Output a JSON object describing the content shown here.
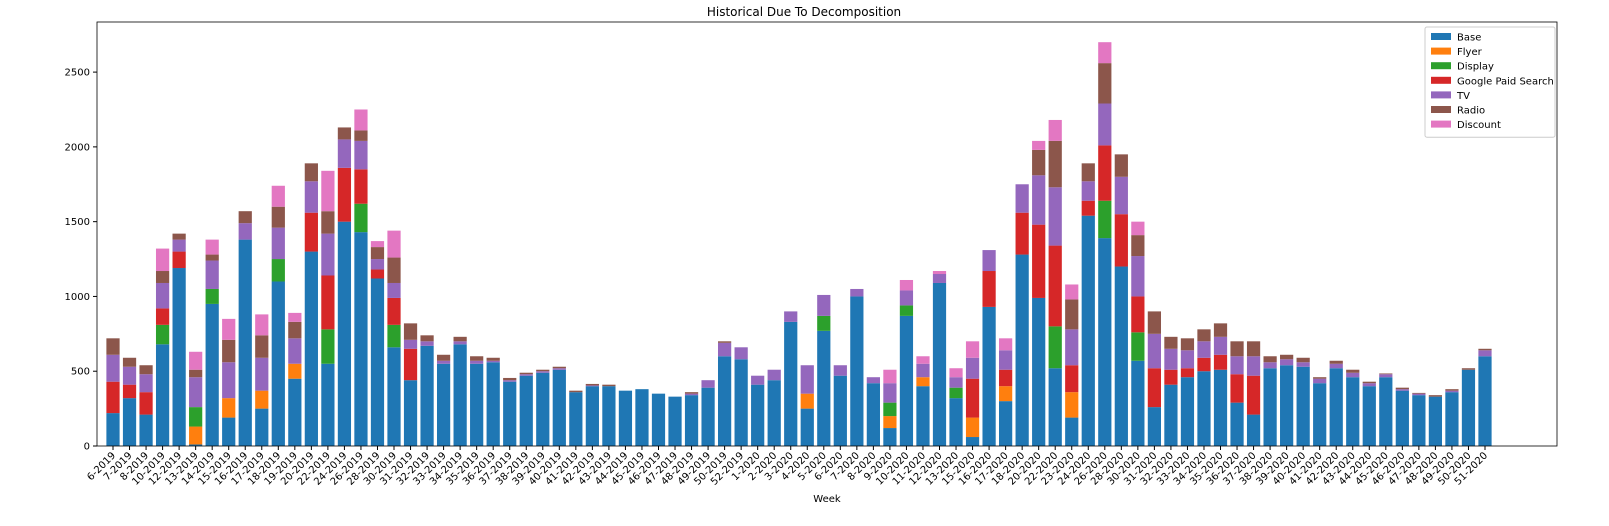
{
  "chart_data": {
    "type": "stacked-bar",
    "title": "Historical Due To Decomposition",
    "x_label": "Week",
    "categories": [
      "6-2019",
      "7-2019",
      "8-2019",
      "10-2019",
      "12-2019",
      "13-2019",
      "14-2019",
      "15-2019",
      "16-2019",
      "17-2019",
      "18-2019",
      "19-2019",
      "20-2019",
      "22-2019",
      "24-2019",
      "26-2019",
      "28-2019",
      "30-2019",
      "31-2019",
      "32-2019",
      "33-2019",
      "34-2019",
      "35-2019",
      "36-2019",
      "37-2019",
      "38-2019",
      "39-2019",
      "40-2019",
      "41-2019",
      "42-2019",
      "43-2019",
      "44-2019",
      "45-2019",
      "46-2019",
      "47-2019",
      "48-2019",
      "49-2019",
      "50-2019",
      "52-2019",
      "1-2020",
      "2-2020",
      "3-2020",
      "4-2020",
      "5-2020",
      "6-2020",
      "7-2020",
      "8-2020",
      "9-2020",
      "10-2020",
      "11-2020",
      "12-2020",
      "13-2020",
      "15-2020",
      "16-2020",
      "17-2020",
      "18-2020",
      "20-2020",
      "22-2020",
      "23-2020",
      "24-2020",
      "26-2020",
      "28-2020",
      "30-2020",
      "31-2020",
      "32-2020",
      "33-2020",
      "34-2020",
      "35-2020",
      "36-2020",
      "37-2020",
      "38-2020",
      "39-2020",
      "40-2020",
      "41-2020",
      "42-2020",
      "43-2020",
      "44-2020",
      "45-2020",
      "46-2020",
      "47-2020",
      "48-2020",
      "49-2020",
      "50-2020",
      "51-2020"
    ],
    "series": [
      {
        "name": "Base",
        "color": "#1f77b4",
        "values": [
          220,
          320,
          210,
          680,
          1190,
          10,
          950,
          190,
          1380,
          250,
          1100,
          450,
          1300,
          550,
          1500,
          1430,
          1120,
          660,
          440,
          670,
          550,
          680,
          550,
          560,
          430,
          470,
          490,
          510,
          360,
          400,
          400,
          370,
          380,
          350,
          330,
          340,
          390,
          600,
          580,
          410,
          440,
          830,
          250,
          770,
          470,
          1000,
          420,
          120,
          870,
          400,
          1090,
          320,
          60,
          930,
          300,
          1280,
          990,
          520,
          190,
          1540,
          1390,
          1200,
          570,
          260,
          410,
          460,
          500,
          510,
          290,
          210,
          520,
          540,
          530,
          420,
          520,
          460,
          400,
          460,
          370,
          340,
          330,
          360,
          510,
          600
        ]
      },
      {
        "name": "Flyer",
        "color": "#ff7f0e",
        "values": [
          0,
          0,
          0,
          0,
          0,
          120,
          0,
          130,
          0,
          120,
          0,
          100,
          0,
          0,
          0,
          0,
          0,
          0,
          0,
          0,
          0,
          0,
          0,
          0,
          0,
          0,
          0,
          0,
          0,
          0,
          0,
          0,
          0,
          0,
          0,
          0,
          0,
          0,
          0,
          0,
          0,
          0,
          100,
          0,
          0,
          0,
          0,
          80,
          0,
          60,
          0,
          0,
          130,
          0,
          100,
          0,
          0,
          0,
          170,
          0,
          0,
          0,
          0,
          0,
          0,
          0,
          0,
          0,
          0,
          0,
          0,
          0,
          0,
          0,
          0,
          0,
          0,
          0,
          0,
          0,
          0,
          0,
          0,
          0
        ]
      },
      {
        "name": "Display",
        "color": "#2ca02c",
        "values": [
          0,
          0,
          0,
          130,
          0,
          130,
          100,
          0,
          0,
          0,
          150,
          0,
          0,
          230,
          0,
          190,
          0,
          150,
          0,
          0,
          0,
          0,
          0,
          0,
          0,
          0,
          0,
          0,
          0,
          0,
          0,
          0,
          0,
          0,
          0,
          0,
          0,
          0,
          0,
          0,
          0,
          0,
          0,
          100,
          0,
          0,
          0,
          90,
          70,
          0,
          0,
          70,
          0,
          0,
          0,
          0,
          0,
          280,
          0,
          0,
          250,
          0,
          190,
          0,
          0,
          0,
          0,
          0,
          0,
          0,
          0,
          0,
          0,
          0,
          0,
          0,
          0,
          0,
          0,
          0,
          0,
          0,
          0,
          0
        ]
      },
      {
        "name": "Google Paid Search",
        "color": "#d62728",
        "values": [
          210,
          90,
          150,
          110,
          110,
          0,
          0,
          0,
          0,
          0,
          0,
          0,
          260,
          360,
          360,
          230,
          60,
          180,
          210,
          0,
          0,
          0,
          0,
          0,
          0,
          0,
          0,
          0,
          0,
          0,
          0,
          0,
          0,
          0,
          0,
          0,
          0,
          0,
          0,
          0,
          0,
          0,
          0,
          0,
          0,
          0,
          0,
          0,
          0,
          0,
          0,
          0,
          260,
          240,
          110,
          280,
          490,
          540,
          180,
          100,
          370,
          350,
          240,
          260,
          100,
          60,
          90,
          100,
          190,
          260,
          0,
          0,
          0,
          0,
          0,
          0,
          0,
          0,
          0,
          0,
          0,
          0,
          0,
          0
        ]
      },
      {
        "name": "TV",
        "color": "#9467bd",
        "values": [
          180,
          120,
          120,
          170,
          80,
          200,
          190,
          240,
          110,
          220,
          210,
          170,
          210,
          280,
          190,
          190,
          70,
          100,
          60,
          30,
          20,
          20,
          20,
          10,
          10,
          10,
          10,
          10,
          0,
          5,
          0,
          0,
          0,
          0,
          0,
          10,
          50,
          90,
          80,
          60,
          70,
          70,
          190,
          140,
          70,
          50,
          40,
          130,
          100,
          90,
          60,
          70,
          140,
          140,
          130,
          190,
          330,
          390,
          240,
          130,
          280,
          250,
          270,
          230,
          140,
          120,
          110,
          120,
          120,
          130,
          40,
          40,
          30,
          30,
          30,
          30,
          20,
          20,
          10,
          10,
          0,
          10,
          0,
          40
        ]
      },
      {
        "name": "Radio",
        "color": "#8c564b",
        "values": [
          110,
          60,
          60,
          80,
          40,
          50,
          40,
          150,
          80,
          150,
          140,
          110,
          120,
          150,
          80,
          70,
          80,
          170,
          110,
          40,
          40,
          30,
          30,
          20,
          15,
          10,
          10,
          10,
          10,
          10,
          10,
          0,
          0,
          0,
          0,
          10,
          0,
          10,
          0,
          0,
          0,
          0,
          0,
          0,
          0,
          0,
          0,
          0,
          0,
          0,
          0,
          0,
          0,
          0,
          0,
          0,
          170,
          310,
          200,
          120,
          270,
          150,
          140,
          150,
          80,
          80,
          80,
          90,
          100,
          100,
          40,
          30,
          30,
          10,
          20,
          20,
          10,
          5,
          10,
          5,
          10,
          10,
          10,
          10
        ]
      },
      {
        "name": "Discount",
        "color": "#e377c2",
        "values": [
          0,
          0,
          0,
          150,
          0,
          120,
          100,
          140,
          0,
          140,
          140,
          60,
          0,
          270,
          0,
          140,
          40,
          180,
          0,
          0,
          0,
          0,
          0,
          0,
          0,
          0,
          0,
          0,
          0,
          0,
          0,
          0,
          0,
          0,
          0,
          0,
          0,
          0,
          0,
          0,
          0,
          0,
          0,
          0,
          0,
          0,
          0,
          90,
          70,
          50,
          20,
          60,
          110,
          0,
          80,
          0,
          60,
          140,
          100,
          0,
          140,
          0,
          90,
          0,
          0,
          0,
          0,
          0,
          0,
          0,
          0,
          0,
          0,
          0,
          0,
          0,
          0,
          0,
          0,
          0,
          0,
          0,
          0,
          0
        ]
      }
    ],
    "ylim": [
      0,
      2835
    ],
    "yticks": [
      0,
      500,
      1000,
      1500,
      2000,
      2500
    ],
    "legend": "upper right"
  }
}
